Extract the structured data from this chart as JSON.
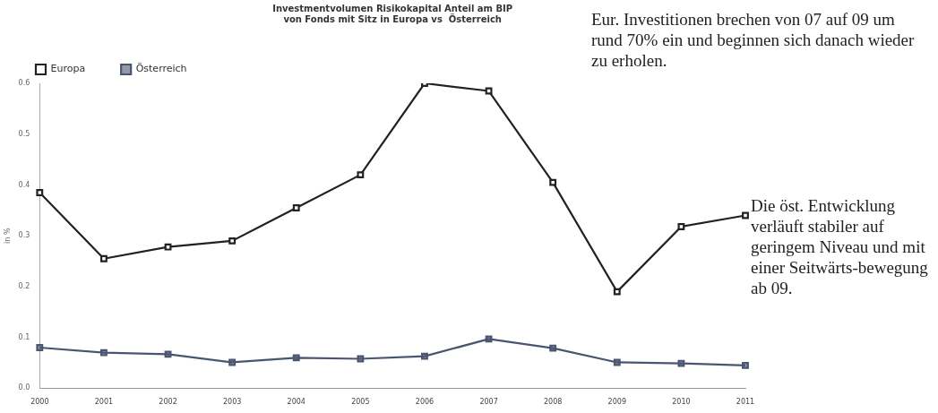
{
  "chart_data": {
    "type": "line",
    "title": "Investmentvolumen Risikokapital Anteil am BIP\nvon Fonds mit Sitz in Europa vs  Österreich",
    "ylabel": "in %",
    "categories": [
      "2000",
      "2001",
      "2002",
      "2003",
      "2004",
      "2005",
      "2006",
      "2007",
      "2008",
      "2009",
      "2010",
      "2011"
    ],
    "series": [
      {
        "name": "Europa",
        "color": "#222222",
        "values": [
          0.385,
          0.255,
          0.278,
          0.29,
          0.355,
          0.42,
          0.6,
          0.585,
          0.405,
          0.19,
          0.318,
          0.34
        ]
      },
      {
        "name": "Österreich",
        "color": "#4a5570",
        "values": [
          0.08,
          0.07,
          0.067,
          0.051,
          0.06,
          0.058,
          0.063,
          0.097,
          0.079,
          0.051,
          0.049,
          0.045
        ]
      }
    ],
    "ylim": [
      0,
      0.6
    ],
    "yticks": [
      {
        "value": 0,
        "label": "0.0"
      },
      0.1,
      0.2,
      0.3,
      0.4,
      0.5,
      {
        "value": 0.6,
        "label": "0.6"
      }
    ],
    "marker": "square",
    "legend": "top",
    "annotations": [
      "Eur. Investitionen brechen von 07 auf 09 um rund 70% ein und beginnen sich danach wieder zu erholen.",
      "Die öst. Entwicklung verläuft stabiler auf geringem Niveau und mit einer Seitwärts-bewegung ab 09."
    ]
  }
}
